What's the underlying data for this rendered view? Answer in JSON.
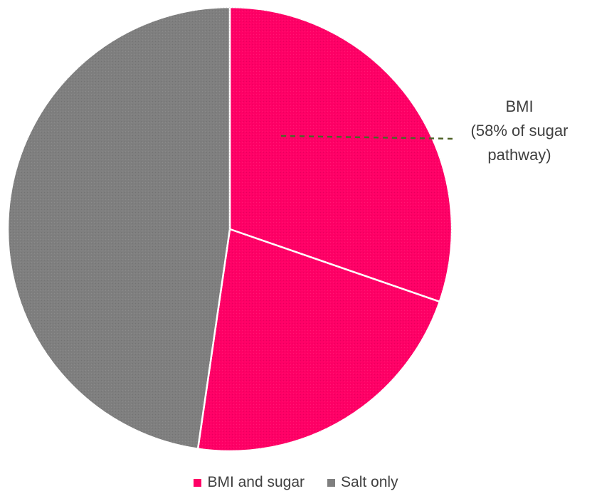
{
  "chart_data": {
    "type": "pie",
    "title": "",
    "slices": [
      {
        "label": "BMI",
        "value": 30.3,
        "color": "#ff0066",
        "category": "BMI and sugar"
      },
      {
        "label": "",
        "value": 22.0,
        "color": "#ff0066",
        "category": "BMI and sugar"
      },
      {
        "label": "",
        "value": 47.7,
        "color": "#7f7f7f",
        "category": "Salt only"
      }
    ],
    "annotation": {
      "lines": [
        "BMI",
        "(58% of sugar",
        "pathway)"
      ],
      "line_color": "#4f6228",
      "line_style": "dashed"
    },
    "legend": {
      "position": "bottom",
      "items": [
        {
          "label": "BMI and sugar",
          "color": "#ff0066"
        },
        {
          "label": "Salt only",
          "color": "#7f7f7f"
        }
      ]
    }
  }
}
